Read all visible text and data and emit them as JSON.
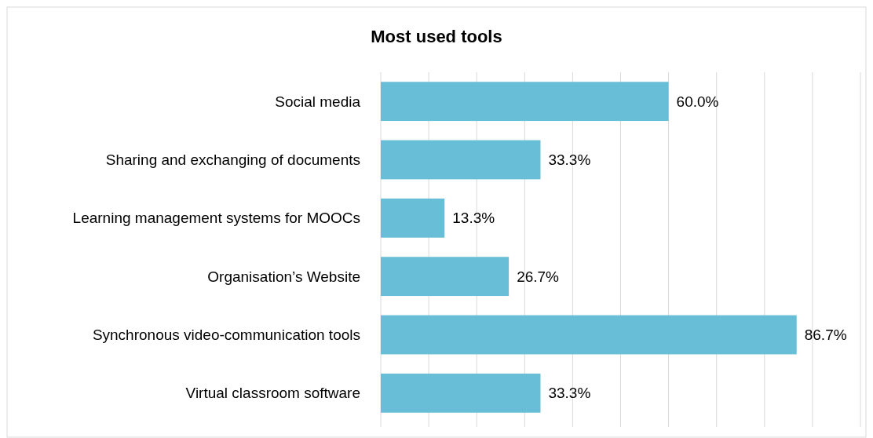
{
  "chart_data": {
    "type": "bar",
    "title": "Most used tools",
    "orientation": "horizontal",
    "categories": [
      "Social media",
      "Sharing and exchanging of documents",
      "Learning management systems for MOOCs",
      "Organisation’s Website",
      "Synchronous video-communication tools",
      "Virtual classroom software"
    ],
    "values": [
      60,
      33.3,
      13.3,
      26.7,
      86.7,
      33.3
    ],
    "value_labels": [
      "60.0%",
      "33.3%",
      "13.3%",
      "26.7%",
      "86.7%",
      "33.3%"
    ],
    "color": "#67bed6",
    "xlim": [
      0,
      100
    ],
    "xticks": [
      {
        "value": 0,
        "label": null
      },
      {
        "value": 10,
        "label": null
      },
      {
        "value": 20,
        "label": null
      },
      {
        "value": 30,
        "label": null
      },
      {
        "value": 40,
        "label": null
      },
      {
        "value": 50,
        "label": null
      },
      {
        "value": 60,
        "label": null
      },
      {
        "value": 70,
        "label": null
      },
      {
        "value": 80,
        "label": null
      },
      {
        "value": 90,
        "label": null
      },
      {
        "value": 100,
        "label": null
      }
    ],
    "grid": "x",
    "tick_labels": "y"
  }
}
